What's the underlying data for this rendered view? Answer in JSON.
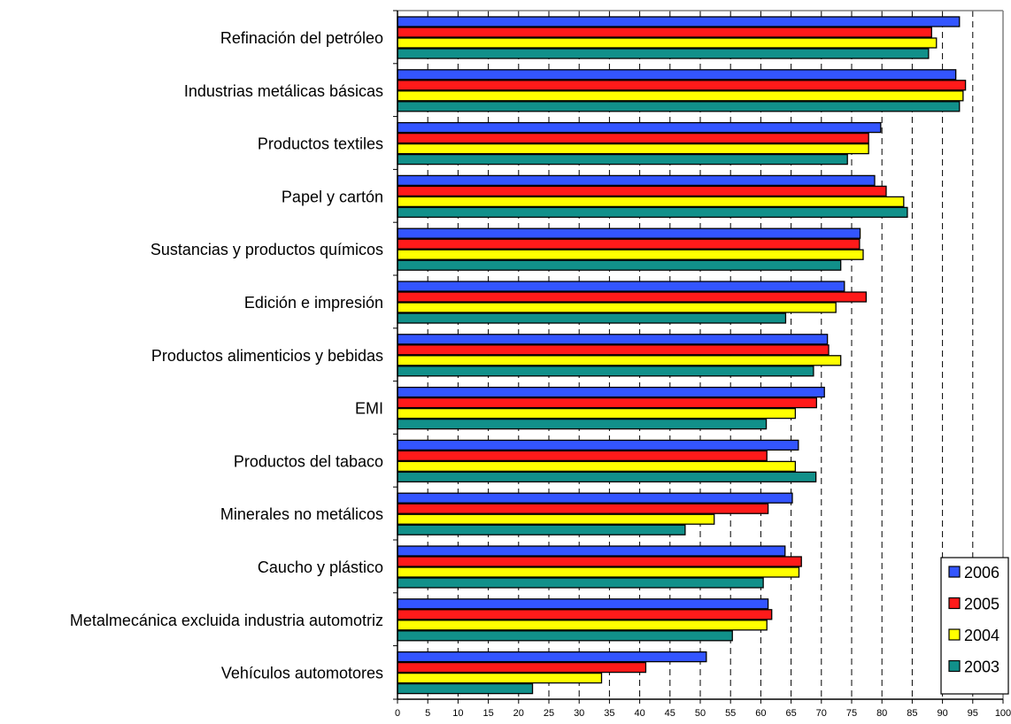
{
  "chart_data": {
    "type": "bar",
    "orientation": "horizontal",
    "title": "",
    "xlabel": "",
    "ylabel": "",
    "xlim": [
      0,
      100
    ],
    "x_ticks": [
      0,
      5,
      10,
      15,
      20,
      25,
      30,
      35,
      40,
      45,
      50,
      55,
      60,
      65,
      70,
      75,
      80,
      85,
      90,
      95,
      100
    ],
    "grid": "vertical dashed",
    "legend_position": "bottom-right",
    "categories": [
      "Refinación del petróleo",
      "Industrias metálicas básicas",
      "Productos textiles",
      "Papel y cartón",
      "Sustancias y productos químicos",
      "Edición e impresión",
      "Productos alimenticios y bebidas",
      "EMI",
      "Productos del tabaco",
      "Minerales no metálicos",
      "Caucho y plástico",
      "Metalmecánica excluida industria automotriz",
      "Vehículos automotores"
    ],
    "series": [
      {
        "name": "2006",
        "color": "#3355ff",
        "values": [
          92.8,
          92.2,
          79.8,
          78.8,
          76.4,
          73.8,
          71.0,
          70.5,
          66.2,
          65.2,
          64.0,
          61.2,
          51.0
        ]
      },
      {
        "name": "2005",
        "color": "#ff1a1a",
        "values": [
          88.2,
          93.8,
          77.8,
          80.7,
          76.3,
          77.4,
          71.2,
          69.2,
          61.0,
          61.2,
          66.7,
          61.8,
          41.0
        ]
      },
      {
        "name": "2004",
        "color": "#ffff00",
        "values": [
          89.0,
          93.4,
          77.8,
          83.6,
          76.9,
          72.4,
          73.2,
          65.7,
          65.7,
          52.3,
          66.3,
          61.0,
          33.7
        ]
      },
      {
        "name": "2003",
        "color": "#11908a",
        "values": [
          87.7,
          92.8,
          74.3,
          84.2,
          73.2,
          64.1,
          68.7,
          60.9,
          69.1,
          47.5,
          60.4,
          55.3,
          22.3
        ]
      }
    ]
  }
}
